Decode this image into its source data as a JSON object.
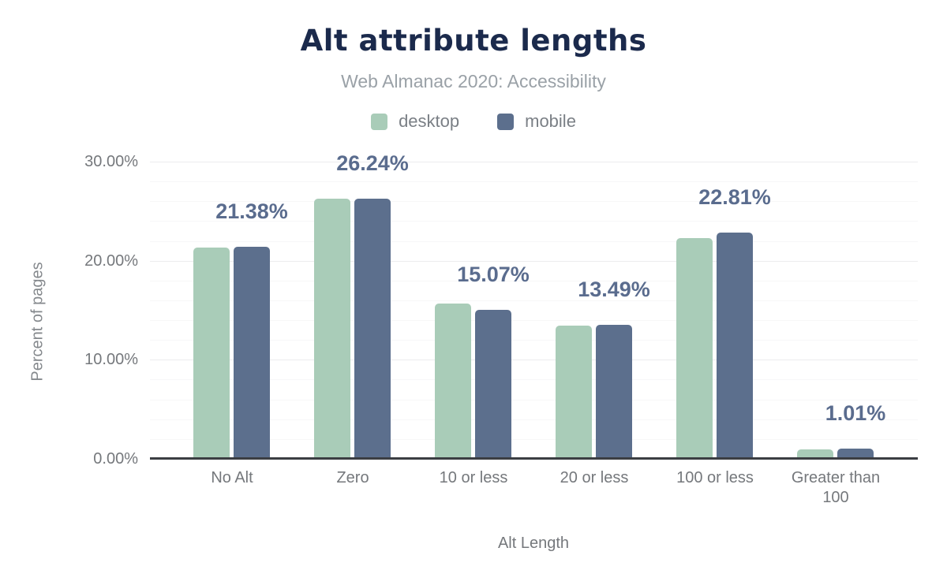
{
  "header": {
    "title": "Alt attribute lengths",
    "subtitle": "Web Almanac 2020: Accessibility"
  },
  "legend": {
    "items": [
      {
        "label": "desktop",
        "color": "#a9ccb8"
      },
      {
        "label": "mobile",
        "color": "#5c6f8d"
      }
    ]
  },
  "colors": {
    "desktop_bar": "#a9ccb8",
    "mobile_bar": "#5c6f8d",
    "data_label_text": "#5a6c8e",
    "title_text": "#1b2a4c",
    "subtitle_text": "#9aa1a7",
    "axis_text": "#75787c",
    "axis_line": "#3b3e42",
    "gridline_major": "#ececee",
    "gridline_minor": "#f7f7f8"
  },
  "chart_data": {
    "type": "bar",
    "title": "Alt attribute lengths",
    "subtitle": "Web Almanac 2020: Accessibility",
    "categories": [
      "No Alt",
      "Zero",
      "10 or less",
      "20 or less",
      "100 or less",
      "Greater than 100"
    ],
    "series": [
      {
        "name": "desktop",
        "color": "#a9ccb8",
        "values": [
          21.3,
          26.28,
          15.7,
          13.44,
          22.25,
          0.93
        ]
      },
      {
        "name": "mobile",
        "color": "#5c6f8d",
        "values": [
          21.38,
          26.24,
          15.07,
          13.49,
          22.81,
          1.01
        ]
      }
    ],
    "data_labels": {
      "series": "mobile",
      "values": [
        "21.38%",
        "26.24%",
        "15.07%",
        "13.49%",
        "22.81%",
        "1.01%"
      ]
    },
    "xlabel": "Alt Length",
    "ylabel": "Percent of pages",
    "ylim": [
      0,
      30
    ],
    "yticks": [
      "0.00%",
      "10.00%",
      "20.00%",
      "30.00%"
    ],
    "ytick_values": [
      0,
      10,
      20,
      30
    ],
    "gridlines": {
      "major_step_pct": 10,
      "minor_step_pct": 2
    },
    "legend_position": "top"
  }
}
